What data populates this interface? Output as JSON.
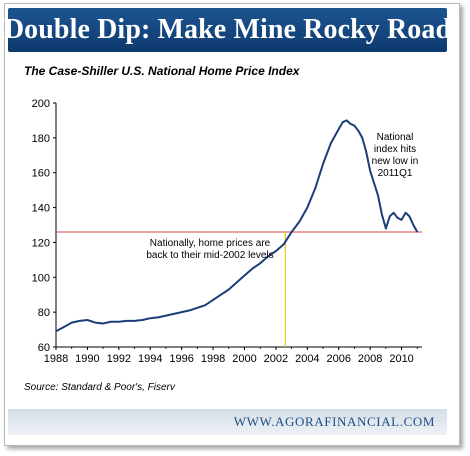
{
  "header": {
    "title": "Double Dip: Make Mine Rocky Road"
  },
  "footer": {
    "source": "Source:  Standard & Poor's, Fiserv",
    "url": "WWW.AGORAFINANCIAL.COM"
  },
  "colors": {
    "banner": "#14477f",
    "line": "#1a3f78",
    "reference_line": "#d04848",
    "marker_line": "#f0c419",
    "footer_text": "#1b4f86"
  },
  "chart_data": {
    "type": "line",
    "title": "The Case-Shiller U.S. National Home Price Index",
    "xlabel": "",
    "ylabel": "",
    "xlim": [
      1988,
      2011.3
    ],
    "ylim": [
      60,
      200
    ],
    "x_ticks": [
      "1988",
      "1990",
      "1992",
      "1994",
      "1996",
      "1998",
      "2000",
      "2002",
      "2004",
      "2006",
      "2008",
      "2010"
    ],
    "y_ticks": [
      "60",
      "80",
      "100",
      "120",
      "140",
      "160",
      "180",
      "200"
    ],
    "grid": false,
    "series": [
      {
        "x": [
          1987.0,
          1987.5,
          1988.0,
          1988.5,
          1989.0,
          1989.5,
          1990.0,
          1990.5,
          1991.0,
          1991.5,
          1992.0,
          1992.5,
          1993.0,
          1993.5,
          1994.0,
          1994.5,
          1995.0,
          1995.5,
          1996.0,
          1996.5,
          1997.0,
          1997.5,
          1998.0,
          1998.5,
          1999.0,
          1999.5,
          2000.0,
          2000.5,
          2001.0,
          2001.5,
          2002.0,
          2002.5,
          2003.0,
          2003.5,
          2004.0,
          2004.5,
          2005.0,
          2005.5,
          2006.0,
          2006.25,
          2006.5,
          2006.75,
          2007.0,
          2007.25,
          2007.5,
          2007.75,
          2008.0,
          2008.25,
          2008.5,
          2008.75,
          2009.0,
          2009.25,
          2009.5,
          2009.75,
          2010.0,
          2010.25,
          2010.5,
          2010.75,
          2011.0
        ],
        "values": [
          63.8,
          66.0,
          69.0,
          71.5,
          74.0,
          75.0,
          75.5,
          74.0,
          73.5,
          74.5,
          74.5,
          75.0,
          75.0,
          75.5,
          76.5,
          77.0,
          78.0,
          79.0,
          80.0,
          81.0,
          82.5,
          84.0,
          87.0,
          90.0,
          93.0,
          97.0,
          101.0,
          105.0,
          108.0,
          112.0,
          115.0,
          119.0,
          126.0,
          132.0,
          140.0,
          151.0,
          165.0,
          177.0,
          185.0,
          189.0,
          190.0,
          188.0,
          187.0,
          184.0,
          180.0,
          172.0,
          161.0,
          154.0,
          147.0,
          136.0,
          128.0,
          135.0,
          137.0,
          134.0,
          133.0,
          137.0,
          135.0,
          130.0,
          126.0
        ]
      }
    ],
    "reference_line_y": 126,
    "marker_line_x": 2002.6,
    "annotations": [
      {
        "text_lines": [
          "Nationally, home prices are",
          "back to their mid-2002 levels"
        ]
      },
      {
        "text_lines": [
          "National",
          "index hits",
          "new low in",
          "2011Q1"
        ]
      }
    ]
  }
}
